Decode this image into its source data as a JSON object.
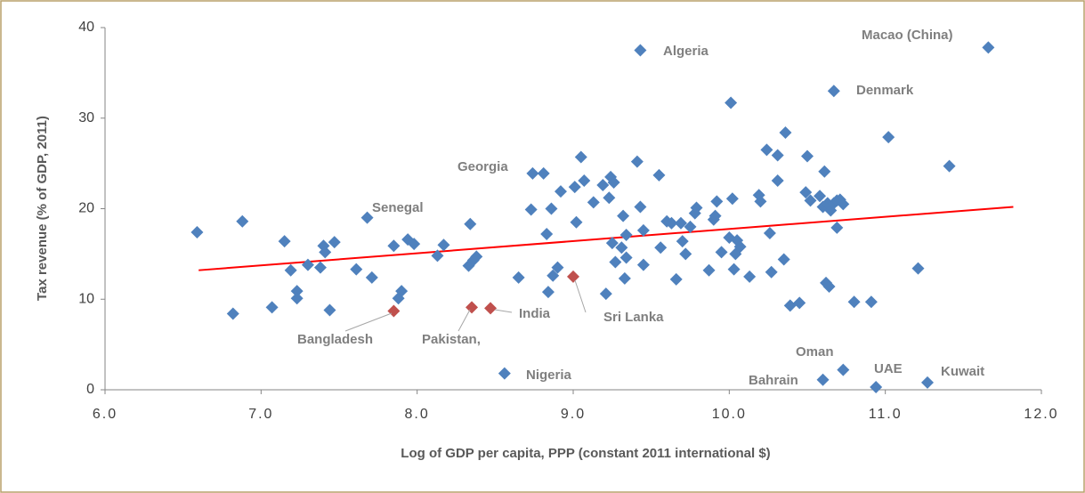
{
  "chart_data": {
    "type": "scatter",
    "xlabel": "Log of GDP per capita, PPP (constant 2011 international $)",
    "ylabel": "Tax revenue (% of GDP, 2011)",
    "xlim": [
      6,
      12
    ],
    "ylim": [
      0,
      40
    ],
    "xticks": [
      {
        "value": 6,
        "label": "6.0"
      },
      {
        "value": 7,
        "label": "7.0"
      },
      {
        "value": 8,
        "label": "8.0"
      },
      {
        "value": 9,
        "label": "9.0"
      },
      {
        "value": 10,
        "label": "10.0"
      },
      {
        "value": 11,
        "label": "11.0"
      },
      {
        "value": 12,
        "label": "12.0"
      }
    ],
    "yticks": [
      0,
      10,
      20,
      30,
      40
    ],
    "grid": false,
    "series": [
      {
        "color": "#4f81bd",
        "x": [
          6.59,
          6.82,
          6.88,
          7.07,
          7.15,
          7.19,
          7.23,
          7.23,
          7.3,
          7.38,
          7.4,
          7.41,
          7.44,
          7.47,
          7.61,
          7.68,
          7.71,
          7.85,
          7.88,
          7.9,
          7.94,
          7.98,
          8.13,
          8.17,
          8.33,
          8.34,
          8.36,
          8.38,
          8.56,
          8.65,
          8.73,
          8.74,
          8.81,
          8.83,
          8.84,
          8.86,
          8.87,
          8.9,
          8.92,
          9.01,
          9.02,
          9.05,
          9.07,
          9.13,
          9.19,
          9.21,
          9.23,
          9.24,
          9.25,
          9.26,
          9.27,
          9.31,
          9.32,
          9.33,
          9.34,
          9.34,
          9.41,
          9.43,
          9.43,
          9.45,
          9.45,
          9.55,
          9.56,
          9.6,
          9.63,
          9.66,
          9.69,
          9.7,
          9.72,
          9.75,
          9.78,
          9.79,
          9.87,
          9.9,
          9.91,
          9.92,
          9.95,
          10.0,
          10.01,
          10.02,
          10.03,
          10.04,
          10.05,
          10.07,
          10.13,
          10.19,
          10.2,
          10.24,
          10.26,
          10.27,
          10.31,
          10.31,
          10.35,
          10.36,
          10.39,
          10.45,
          10.5,
          10.49,
          10.52,
          10.58,
          10.6,
          10.61,
          10.63,
          10.65,
          10.62,
          10.64,
          10.67,
          10.69,
          10.67,
          10.69,
          10.71,
          10.73,
          10.73,
          10.6,
          10.8,
          10.91,
          10.94,
          11.02,
          11.21,
          11.27,
          11.41,
          11.66
        ],
        "values": [
          17.4,
          8.4,
          18.6,
          9.1,
          16.4,
          13.2,
          10.9,
          10.1,
          13.8,
          13.5,
          15.9,
          15.2,
          8.8,
          16.3,
          13.3,
          19.0,
          12.4,
          15.9,
          10.1,
          10.9,
          16.6,
          16.1,
          14.8,
          16.0,
          13.7,
          18.3,
          14.3,
          14.7,
          1.8,
          12.4,
          19.9,
          23.9,
          23.9,
          17.2,
          10.8,
          20.0,
          12.6,
          13.5,
          21.9,
          22.4,
          18.5,
          25.7,
          23.1,
          20.7,
          22.6,
          10.6,
          21.2,
          23.5,
          16.2,
          22.9,
          14.1,
          15.7,
          19.2,
          12.3,
          17.1,
          14.6,
          25.2,
          20.2,
          37.5,
          13.8,
          17.6,
          23.7,
          15.7,
          18.6,
          18.4,
          12.2,
          18.4,
          16.4,
          15.0,
          18.0,
          19.5,
          20.1,
          13.2,
          18.8,
          19.2,
          20.8,
          15.2,
          16.8,
          31.7,
          21.1,
          13.3,
          15.0,
          16.5,
          15.8,
          12.5,
          21.5,
          20.8,
          26.5,
          17.3,
          13.0,
          25.9,
          23.1,
          14.4,
          28.4,
          9.3,
          9.6,
          25.8,
          21.8,
          20.9,
          21.4,
          20.2,
          24.1,
          20.6,
          19.8,
          11.8,
          11.4,
          20.6,
          20.9,
          33.0,
          17.9,
          21.0,
          20.5,
          2.2,
          1.1,
          9.7,
          9.7,
          0.3,
          27.9,
          13.4,
          0.8,
          24.7,
          37.8
        ]
      },
      {
        "color": "#c0504d",
        "x": [
          7.85,
          8.35,
          8.47,
          9.0
        ],
        "values": [
          8.7,
          9.1,
          9.0,
          12.5
        ]
      }
    ],
    "trendline": {
      "color": "#ff0000",
      "x": [
        6.6,
        11.82
      ],
      "values": [
        13.2,
        20.2
      ]
    },
    "annotations": [
      "Algeria",
      "Macao (China)",
      "Denmark",
      "Georgia",
      "Senegal",
      "Bangladesh",
      "Pakistan,",
      "India",
      "Sri Lanka",
      "Nigeria",
      "Oman",
      "Bahrain",
      "UAE",
      "Kuwait"
    ]
  }
}
